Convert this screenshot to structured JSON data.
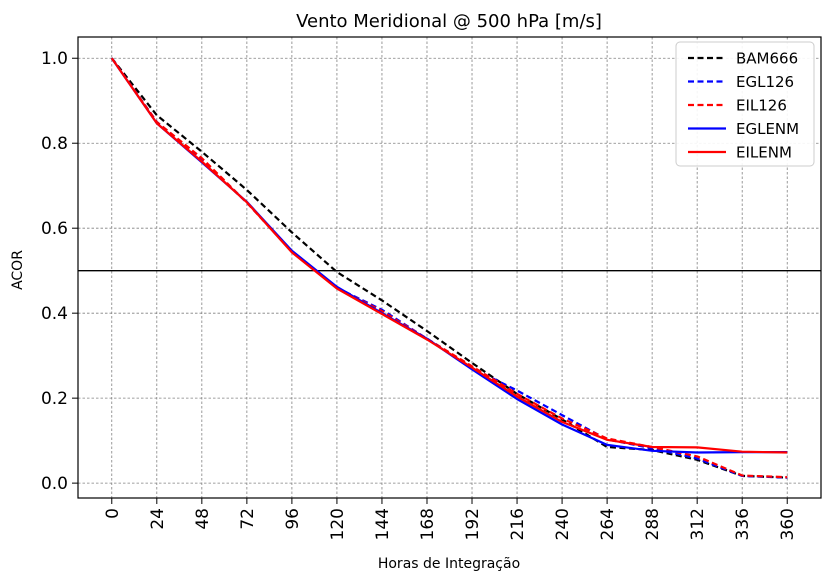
{
  "chart_data": {
    "type": "line",
    "title": "Vento Meridional @ 500 hPa [m/s]",
    "xlabel": "Horas de Integração",
    "ylabel": "ACOR",
    "x": [
      0,
      24,
      48,
      72,
      96,
      120,
      144,
      168,
      192,
      216,
      240,
      264,
      288,
      312,
      336,
      360
    ],
    "xlim": [
      -18,
      378
    ],
    "ylim": [
      -0.035,
      1.05
    ],
    "yticks": [
      0.0,
      0.2,
      0.4,
      0.6,
      0.8,
      1.0
    ],
    "ytick_labels": [
      "0.0",
      "0.2",
      "0.4",
      "0.6",
      "0.8",
      "1.0"
    ],
    "xtick_labels": [
      "0",
      "24",
      "48",
      "72",
      "96",
      "120",
      "144",
      "168",
      "192",
      "216",
      "240",
      "264",
      "288",
      "312",
      "336",
      "360"
    ],
    "reference_line": 0.5,
    "grid": true,
    "legend_position": "top-right",
    "series": [
      {
        "name": "BAM666",
        "color": "#000000",
        "style": "dashed",
        "values": [
          1.0,
          0.866,
          0.78,
          0.69,
          0.59,
          0.497,
          0.43,
          0.358,
          0.283,
          0.21,
          0.15,
          0.085,
          0.078,
          0.055,
          0.017,
          0.013
        ]
      },
      {
        "name": "EGL126",
        "color": "#0000ff",
        "style": "dashed",
        "values": [
          1.0,
          0.85,
          0.76,
          0.66,
          0.545,
          0.46,
          0.408,
          0.34,
          0.271,
          0.218,
          0.16,
          0.103,
          0.082,
          0.058,
          0.017,
          0.013
        ]
      },
      {
        "name": "EIL126",
        "color": "#ff0000",
        "style": "dashed",
        "values": [
          1.0,
          0.85,
          0.765,
          0.66,
          0.545,
          0.46,
          0.405,
          0.34,
          0.275,
          0.21,
          0.152,
          0.105,
          0.085,
          0.063,
          0.018,
          0.014
        ]
      },
      {
        "name": "EGLENM",
        "color": "#0000ff",
        "style": "solid",
        "values": [
          1.0,
          0.847,
          0.755,
          0.662,
          0.547,
          0.462,
          0.4,
          0.34,
          0.268,
          0.198,
          0.138,
          0.09,
          0.076,
          0.072,
          0.073,
          0.073
        ]
      },
      {
        "name": "EILENM",
        "color": "#ff0000",
        "style": "solid",
        "values": [
          1.0,
          0.847,
          0.757,
          0.661,
          0.543,
          0.458,
          0.398,
          0.338,
          0.272,
          0.204,
          0.144,
          0.102,
          0.085,
          0.084,
          0.074,
          0.072
        ]
      }
    ]
  }
}
